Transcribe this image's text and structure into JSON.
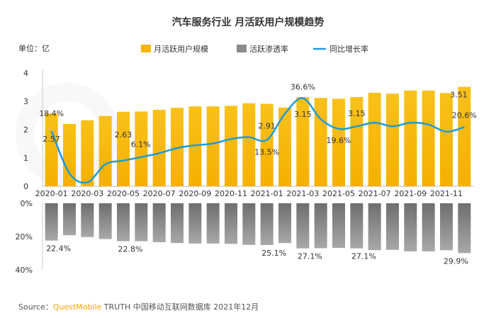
{
  "title": "汽车服务行业 月活跃用户规模趋势",
  "unit_label": "单位：亿",
  "legend": [
    {
      "label": "月活跃用户规模",
      "color": "#f7b500"
    },
    {
      "label": "活跃渗透率",
      "color": "#8a8a8a"
    },
    {
      "label": "同比增长率",
      "color": "#1f9bd7"
    }
  ],
  "source": {
    "prefix": "Source：",
    "brand": "QuestMobile",
    "rest": " TRUTH 中国移动互联网数据库 2021年12月"
  },
  "chart_data": {
    "type": "bar",
    "categories": [
      "2020-01",
      "2020-02",
      "2020-03",
      "2020-04",
      "2020-05",
      "2020-06",
      "2020-07",
      "2020-08",
      "2020-09",
      "2020-10",
      "2020-11",
      "2020-12",
      "2021-01",
      "2021-02",
      "2021-03",
      "2021-04",
      "2021-05",
      "2021-06",
      "2021-07",
      "2021-08",
      "2021-09",
      "2021-10",
      "2021-11",
      "2021-12"
    ],
    "x_tick_labels": [
      "2020-01",
      "2020-03",
      "2020-05",
      "2020-07",
      "2020-09",
      "2020-11",
      "2021-01",
      "2021-03",
      "2021-05",
      "2021-07",
      "2021-09",
      "2021-11"
    ],
    "top_axis": {
      "ylim": [
        0,
        4
      ],
      "ticks": [
        "0",
        "1",
        "2",
        "3",
        "4"
      ]
    },
    "bottom_axis": {
      "ylim": [
        0,
        40
      ],
      "ticks": [
        "0%",
        "20%",
        "40%"
      ]
    },
    "series": [
      {
        "name": "月活跃用户规模",
        "kind": "bar",
        "color": "#f7b500",
        "values": [
          2.57,
          2.2,
          2.33,
          2.48,
          2.63,
          2.64,
          2.7,
          2.77,
          2.82,
          2.82,
          2.84,
          2.93,
          2.91,
          2.78,
          3.15,
          3.12,
          3.09,
          3.15,
          3.3,
          3.27,
          3.38,
          3.38,
          3.29,
          3.51
        ],
        "labels": {
          "0": "2.57",
          "4": "2.63",
          "12": "2.91",
          "14": "3.15",
          "17": "3.15",
          "23": "3.51"
        }
      },
      {
        "name": "同比增长率",
        "kind": "line",
        "color": "#1f9bd7",
        "unit": "%",
        "values": [
          18.4,
          -5.0,
          -10.0,
          0.0,
          2.0,
          4.0,
          6.1,
          9.0,
          10.5,
          11.5,
          14.0,
          15.0,
          13.5,
          28.0,
          36.6,
          25.0,
          19.6,
          21.0,
          23.0,
          21.0,
          23.0,
          22.0,
          18.0,
          20.6
        ],
        "labels": {
          "0": "18.4%",
          "6": "6.1%",
          "12": "13.5%",
          "14": "36.6%",
          "16": "19.6%",
          "23": "20.6%"
        }
      },
      {
        "name": "活跃渗透率",
        "kind": "bar",
        "color": "#8a8a8a",
        "unit": "%",
        "values": [
          22.4,
          19.2,
          20.3,
          21.5,
          22.8,
          22.8,
          23.4,
          23.9,
          24.2,
          24.2,
          24.4,
          25.0,
          25.1,
          23.9,
          27.1,
          27.0,
          26.8,
          27.1,
          28.2,
          28.0,
          28.9,
          28.9,
          28.2,
          29.9
        ],
        "labels": {
          "0": "22.4%",
          "4": "22.8%",
          "12": "25.1%",
          "14": "27.1%",
          "17": "27.1%",
          "23": "29.9%"
        }
      }
    ]
  }
}
